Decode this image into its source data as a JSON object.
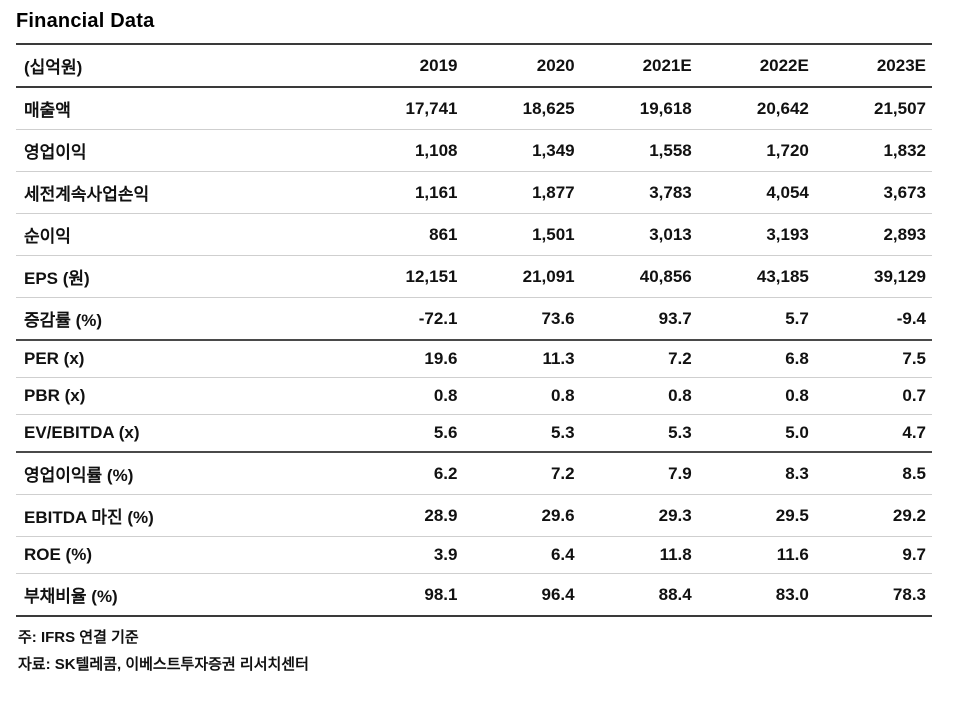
{
  "title": "Financial Data",
  "table": {
    "unit_header": "(십억원)",
    "columns": [
      "2019",
      "2020",
      "2021E",
      "2022E",
      "2023E"
    ],
    "sections": [
      {
        "rows": [
          {
            "label": "매출액",
            "values": [
              "17,741",
              "18,625",
              "19,618",
              "20,642",
              "21,507"
            ]
          },
          {
            "label": "영업이익",
            "values": [
              "1,108",
              "1,349",
              "1,558",
              "1,720",
              "1,832"
            ]
          },
          {
            "label": "세전계속사업손익",
            "values": [
              "1,161",
              "1,877",
              "3,783",
              "4,054",
              "3,673"
            ]
          },
          {
            "label": "순이익",
            "values": [
              "861",
              "1,501",
              "3,013",
              "3,193",
              "2,893"
            ]
          },
          {
            "label": "EPS (원)",
            "values": [
              "12,151",
              "21,091",
              "40,856",
              "43,185",
              "39,129"
            ]
          },
          {
            "label": "증감률 (%)",
            "values": [
              "-72.1",
              "73.6",
              "93.7",
              "5.7",
              "-9.4"
            ]
          }
        ]
      },
      {
        "rows": [
          {
            "label": "PER (x)",
            "values": [
              "19.6",
              "11.3",
              "7.2",
              "6.8",
              "7.5"
            ]
          },
          {
            "label": "PBR (x)",
            "values": [
              "0.8",
              "0.8",
              "0.8",
              "0.8",
              "0.7"
            ]
          },
          {
            "label": "EV/EBITDA (x)",
            "values": [
              "5.6",
              "5.3",
              "5.3",
              "5.0",
              "4.7"
            ]
          }
        ]
      },
      {
        "rows": [
          {
            "label": "영업이익률 (%)",
            "values": [
              "6.2",
              "7.2",
              "7.9",
              "8.3",
              "8.5"
            ]
          },
          {
            "label": "EBITDA 마진 (%)",
            "values": [
              "28.9",
              "29.6",
              "29.3",
              "29.5",
              "29.2"
            ]
          },
          {
            "label": "ROE (%)",
            "values": [
              "3.9",
              "6.4",
              "11.8",
              "11.6",
              "9.7"
            ]
          },
          {
            "label": "부채비율 (%)",
            "values": [
              "98.1",
              "96.4",
              "88.4",
              "83.0",
              "78.3"
            ]
          }
        ]
      }
    ]
  },
  "notes": {
    "note1": "주: IFRS 연결 기준",
    "note2": "자료: SK텔레콤, 이베스트투자증권 리서치센터"
  }
}
